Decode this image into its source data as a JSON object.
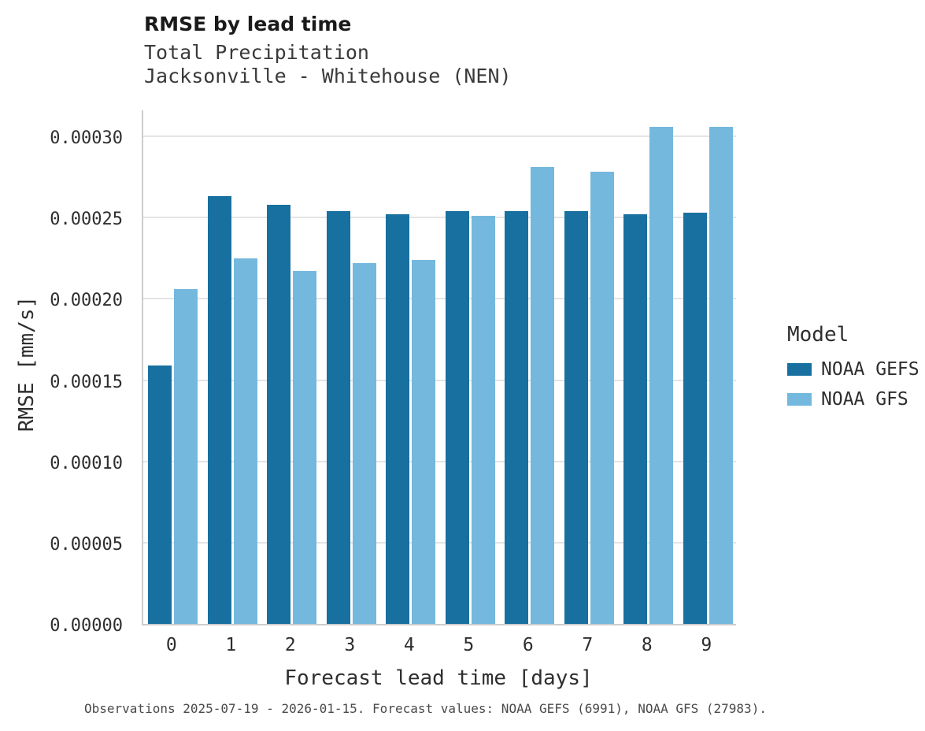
{
  "title": "RMSE by lead time",
  "subtitle1": "Total Precipitation",
  "subtitle2": "Jacksonville - Whitehouse (NEN)",
  "caption": "Observations 2025-07-19 - 2026-01-15. Forecast values: NOAA GEFS (6991), NOAA GFS (27983).",
  "legend": {
    "title": "Model"
  },
  "colors": {
    "gefs": "#17709f",
    "gfs": "#74b8dd",
    "grid": "#e4e4e4",
    "axis": "#cccccc"
  },
  "chart_data": {
    "type": "bar",
    "title": "RMSE by lead time",
    "subtitle": [
      "Total Precipitation",
      "Jacksonville - Whitehouse (NEN)"
    ],
    "xlabel": "Forecast lead time [days]",
    "ylabel": "RMSE [mm/s]",
    "categories": [
      0,
      1,
      2,
      3,
      4,
      5,
      6,
      7,
      8,
      9
    ],
    "yticks": [
      0.0,
      5e-05,
      0.0001,
      0.00015,
      0.0002,
      0.00025,
      0.0003
    ],
    "ytick_labels": [
      "0.00000",
      "0.00005",
      "0.00010",
      "0.00015",
      "0.00020",
      "0.00025",
      "0.00030"
    ],
    "ylim": [
      0,
      0.000317
    ],
    "grid": "horizontal",
    "legend_position": "right",
    "legend_title": "Model",
    "series": [
      {
        "name": "NOAA GEFS",
        "color": "#17709f",
        "values": [
          0.000159,
          0.000263,
          0.000258,
          0.000254,
          0.000252,
          0.000254,
          0.000254,
          0.000254,
          0.000252,
          0.000253
        ]
      },
      {
        "name": "NOAA GFS",
        "color": "#74b8dd",
        "values": [
          0.000206,
          0.000225,
          0.000217,
          0.000222,
          0.000224,
          0.000251,
          0.000281,
          0.000278,
          0.000306,
          0.000306
        ]
      }
    ]
  }
}
